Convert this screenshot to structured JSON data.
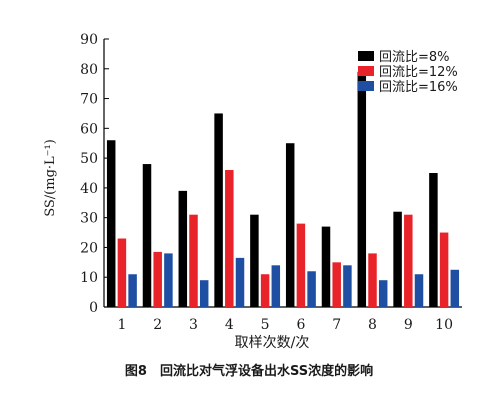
{
  "chart_data": {
    "type": "bar",
    "categories": [
      "1",
      "2",
      "3",
      "4",
      "5",
      "6",
      "7",
      "8",
      "9",
      "10"
    ],
    "series": [
      {
        "name": "回流比=8%",
        "color": "#000000",
        "values": [
          56,
          48,
          39,
          65,
          31,
          55,
          27,
          79,
          32,
          45
        ]
      },
      {
        "name": "回流比=12%",
        "color": "#e8232a",
        "values": [
          23,
          18.5,
          31,
          46,
          11,
          28,
          15,
          18,
          31,
          25
        ]
      },
      {
        "name": "回流比=16%",
        "color": "#1f4fa3",
        "values": [
          11,
          18,
          9,
          16.5,
          14,
          12,
          14,
          9,
          11,
          12.5
        ]
      }
    ],
    "xlabel": "取样次数/次",
    "ylabel": "SS/(mg·L⁻¹)",
    "ylim": [
      0,
      90
    ],
    "yticks": [
      0,
      10,
      20,
      30,
      40,
      50,
      60,
      70,
      80,
      90
    ],
    "grid": false,
    "legend_position": "top-right"
  },
  "caption": "图8　回流比对气浮设备出水SS浓度的影响"
}
